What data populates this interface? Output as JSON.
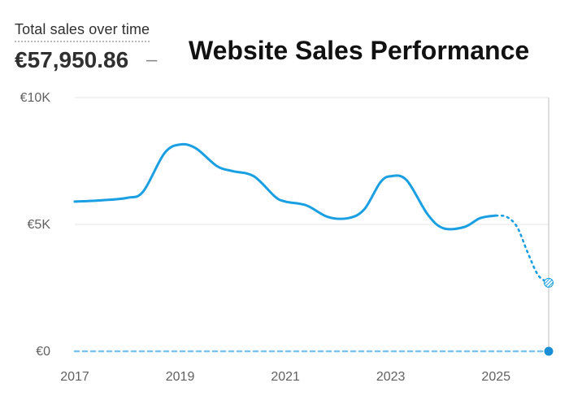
{
  "header": {
    "metric_label": "Total sales over time",
    "metric_value": "€57,950.86",
    "metric_trend": "–"
  },
  "chart_data": {
    "type": "line",
    "title": "Website Sales Performance",
    "xlabel": "",
    "ylabel": "",
    "x_ticks": [
      "2017",
      "2019",
      "2021",
      "2023",
      "2025"
    ],
    "y_ticks": [
      {
        "value": 0,
        "label": "€0"
      },
      {
        "value": 5000,
        "label": "€5K"
      },
      {
        "value": 10000,
        "label": "€10K"
      }
    ],
    "xlim": [
      2017,
      2026
    ],
    "ylim": [
      0,
      10000
    ],
    "grid": true,
    "series": [
      {
        "style": "solid",
        "color": "#1a9fe2",
        "x": [
          2017,
          2017.5,
          2018,
          2018.3,
          2018.7,
          2019,
          2019.3,
          2019.7,
          2020,
          2020.4,
          2020.8,
          2021,
          2021.4,
          2021.8,
          2022.2,
          2022.5,
          2022.8,
          2023,
          2023.3,
          2023.7,
          2024,
          2024.4,
          2024.7,
          2025
        ],
        "y": [
          5900,
          5950,
          6050,
          6300,
          7800,
          8150,
          8000,
          7300,
          7100,
          6900,
          6100,
          5900,
          5750,
          5300,
          5250,
          5600,
          6650,
          6900,
          6750,
          5400,
          4850,
          4900,
          5250,
          5350
        ]
      },
      {
        "style": "dotted",
        "color": "#1a9fe2",
        "x": [
          2025,
          2025.2,
          2025.4,
          2025.6,
          2025.8,
          2026
        ],
        "y": [
          5350,
          5300,
          4900,
          3900,
          3000,
          2700
        ],
        "end_marker": "hatched"
      },
      {
        "style": "dashed",
        "color": "#7fc4ea",
        "x": [
          2017,
          2026
        ],
        "y": [
          0,
          0
        ],
        "end_marker": "filled"
      }
    ]
  }
}
